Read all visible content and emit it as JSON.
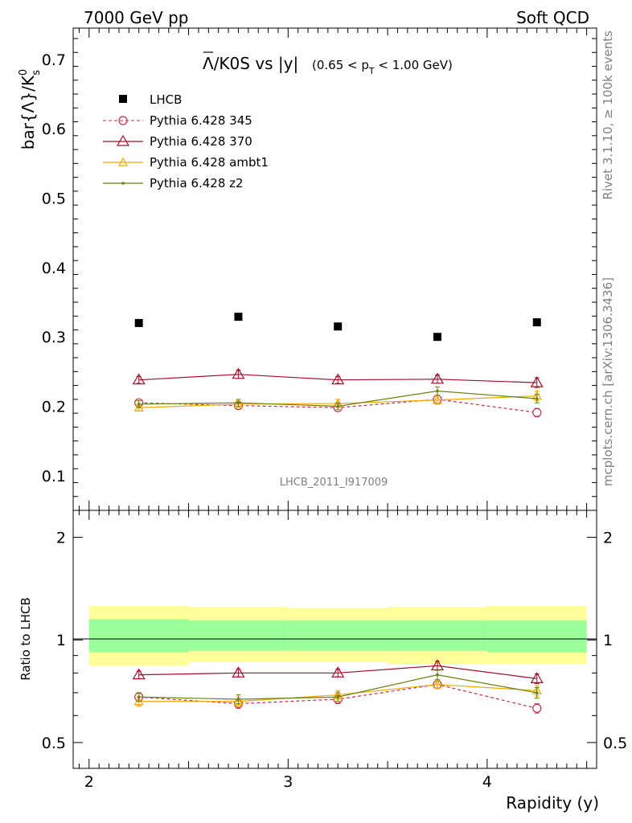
{
  "header": {
    "left": "7000 GeV pp",
    "right": "Soft QCD"
  },
  "side_labels": {
    "rivet": "Rivet 3.1.10, ≥ 100k events",
    "mcplots": "mcplots.cern.ch [arXiv:1306.3436]"
  },
  "analysis_id": "LHCB_2011_I917009",
  "colors": {
    "LHCB": "#000000",
    "p345": "#c0304a",
    "p370": "#a0102a",
    "ambt1": "#f0a800",
    "z2": "#6b7f10",
    "band_outer": "#ffff99",
    "band_inner": "#99ff99"
  },
  "chart_data": [
    {
      "type": "scatter",
      "title_main": "Λ/K0S vs |y|",
      "title_overline": "Λ",
      "title_rest": "/K0S vs |y|",
      "title_range": "(0.65 < p",
      "title_range_sub": "T",
      "title_range_end": " < 1.00 GeV)",
      "ylabel": "bar{Λ}/K",
      "ylabel_sup": "0",
      "ylabel_sub": "s",
      "xlim": [
        1.92,
        4.55
      ],
      "ylim": [
        0.05,
        0.745
      ],
      "yticks": [
        0.1,
        0.2,
        0.3,
        0.4,
        0.5,
        0.6,
        0.7
      ],
      "ytick_labels": [
        "0.1",
        "0.2",
        "0.3",
        "0.4",
        "0.5",
        "0.6",
        "0.7"
      ],
      "x": [
        2.25,
        2.75,
        3.25,
        3.75,
        4.25
      ],
      "series": [
        {
          "key": "LHCB",
          "name": "LHCB",
          "marker": "square",
          "values": [
            0.32,
            0.329,
            0.315,
            0.3,
            0.321
          ],
          "errors": [
            0.004,
            0.004,
            0.004,
            0.004,
            0.004
          ]
        },
        {
          "key": "p345",
          "name": "Pythia 6.428 345",
          "marker": "circle",
          "dashed": true,
          "values": [
            0.205,
            0.201,
            0.198,
            0.21,
            0.191
          ],
          "errors": [
            0.005,
            0.005,
            0.005,
            0.006,
            0.006
          ]
        },
        {
          "key": "p370",
          "name": "Pythia 6.428 370",
          "marker": "triangle",
          "values": [
            0.238,
            0.246,
            0.238,
            0.239,
            0.234
          ],
          "errors": [
            0.005,
            0.006,
            0.005,
            0.006,
            0.007
          ]
        },
        {
          "key": "ambt1",
          "name": "Pythia 6.428 ambt1",
          "marker": "triangle-small",
          "values": [
            0.198,
            0.203,
            0.204,
            0.209,
            0.215
          ],
          "errors": [
            0.005,
            0.005,
            0.006,
            0.006,
            0.007
          ]
        },
        {
          "key": "z2",
          "name": "Pythia 6.428 z2",
          "marker": "dot",
          "values": [
            0.203,
            0.205,
            0.2,
            0.222,
            0.211
          ],
          "errors": [
            0.005,
            0.005,
            0.005,
            0.006,
            0.006
          ]
        }
      ]
    },
    {
      "type": "scatter",
      "ylabel": "Ratio to LHCB",
      "xlabel": "Rapidity (y)",
      "xlim": [
        1.92,
        4.55
      ],
      "ylim": [
        0.42,
        2.4
      ],
      "yticks": [
        0.5,
        1,
        2
      ],
      "ytick_labels": [
        "0.5",
        "1",
        "2"
      ],
      "xticks": [
        2,
        3,
        4
      ],
      "xtick_labels": [
        "2",
        "3",
        "4"
      ],
      "bands": [
        {
          "x0": 2.0,
          "x1": 2.5,
          "outer": [
            0.84,
            1.26
          ],
          "inner": [
            0.92,
            1.15
          ]
        },
        {
          "x0": 2.5,
          "x1": 3.0,
          "outer": [
            0.86,
            1.25
          ],
          "inner": [
            0.93,
            1.14
          ]
        },
        {
          "x0": 3.0,
          "x1": 3.5,
          "outer": [
            0.86,
            1.24
          ],
          "inner": [
            0.93,
            1.14
          ]
        },
        {
          "x0": 3.5,
          "x1": 4.0,
          "outer": [
            0.85,
            1.25
          ],
          "inner": [
            0.93,
            1.14
          ]
        },
        {
          "x0": 4.0,
          "x1": 4.5,
          "outer": [
            0.85,
            1.26
          ],
          "inner": [
            0.92,
            1.14
          ]
        }
      ],
      "x": [
        2.25,
        2.75,
        3.25,
        3.75,
        4.25
      ],
      "series": [
        {
          "key": "p345",
          "marker": "circle",
          "dashed": true,
          "values": [
            0.68,
            0.65,
            0.67,
            0.74,
            0.63
          ],
          "errors": [
            0.02,
            0.02,
            0.02,
            0.02,
            0.02
          ]
        },
        {
          "key": "p370",
          "marker": "triangle",
          "values": [
            0.79,
            0.8,
            0.8,
            0.84,
            0.77
          ],
          "errors": [
            0.02,
            0.02,
            0.02,
            0.025,
            0.025
          ]
        },
        {
          "key": "ambt1",
          "marker": "triangle-small",
          "values": [
            0.66,
            0.66,
            0.69,
            0.74,
            0.71
          ],
          "errors": [
            0.02,
            0.02,
            0.02,
            0.02,
            0.025
          ]
        },
        {
          "key": "z2",
          "marker": "dot",
          "values": [
            0.68,
            0.67,
            0.68,
            0.79,
            0.7
          ],
          "errors": [
            0.02,
            0.02,
            0.02,
            0.025,
            0.025
          ]
        }
      ]
    }
  ]
}
